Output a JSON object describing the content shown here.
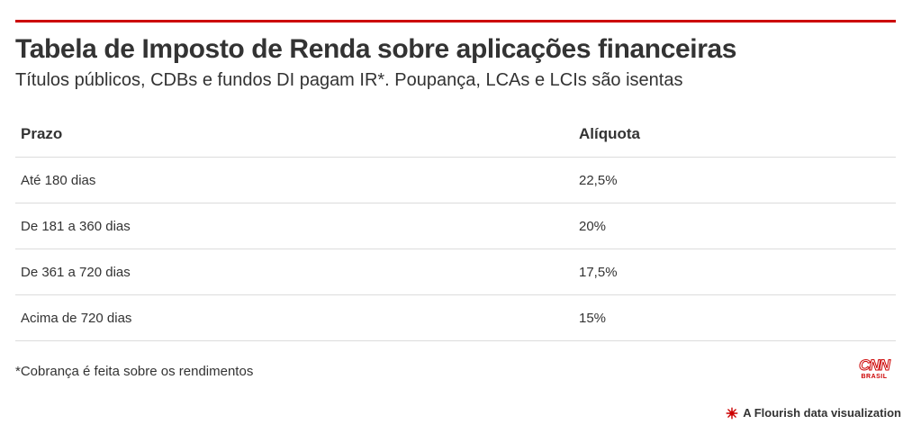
{
  "header": {
    "title": "Tabela de Imposto de Renda sobre aplicações financeiras",
    "subtitle": "Títulos públicos, CDBs e fundos DI pagam IR*. Poupança, LCAs e LCIs são isentas"
  },
  "table": {
    "columns": [
      "Prazo",
      "Alíquota"
    ],
    "rows": [
      [
        "Até 180 dias",
        "22,5%"
      ],
      [
        "De 181 a 360 dias",
        "20%"
      ],
      [
        "De 361 a 720 dias",
        "17,5%"
      ],
      [
        "Acima de 720 dias",
        "15%"
      ]
    ]
  },
  "footer": {
    "note": "*Cobrança é feita sobre os rendimentos",
    "logo_main": "CNN",
    "logo_sub": "BRASIL",
    "credit": "A Flourish data visualization"
  },
  "colors": {
    "accent": "#cc0000",
    "text": "#333333",
    "row_divider": "#dcdcdc"
  },
  "icons": {
    "brand_logo": "cnn-brasil-logo",
    "credit_icon": "flourish-icon"
  }
}
